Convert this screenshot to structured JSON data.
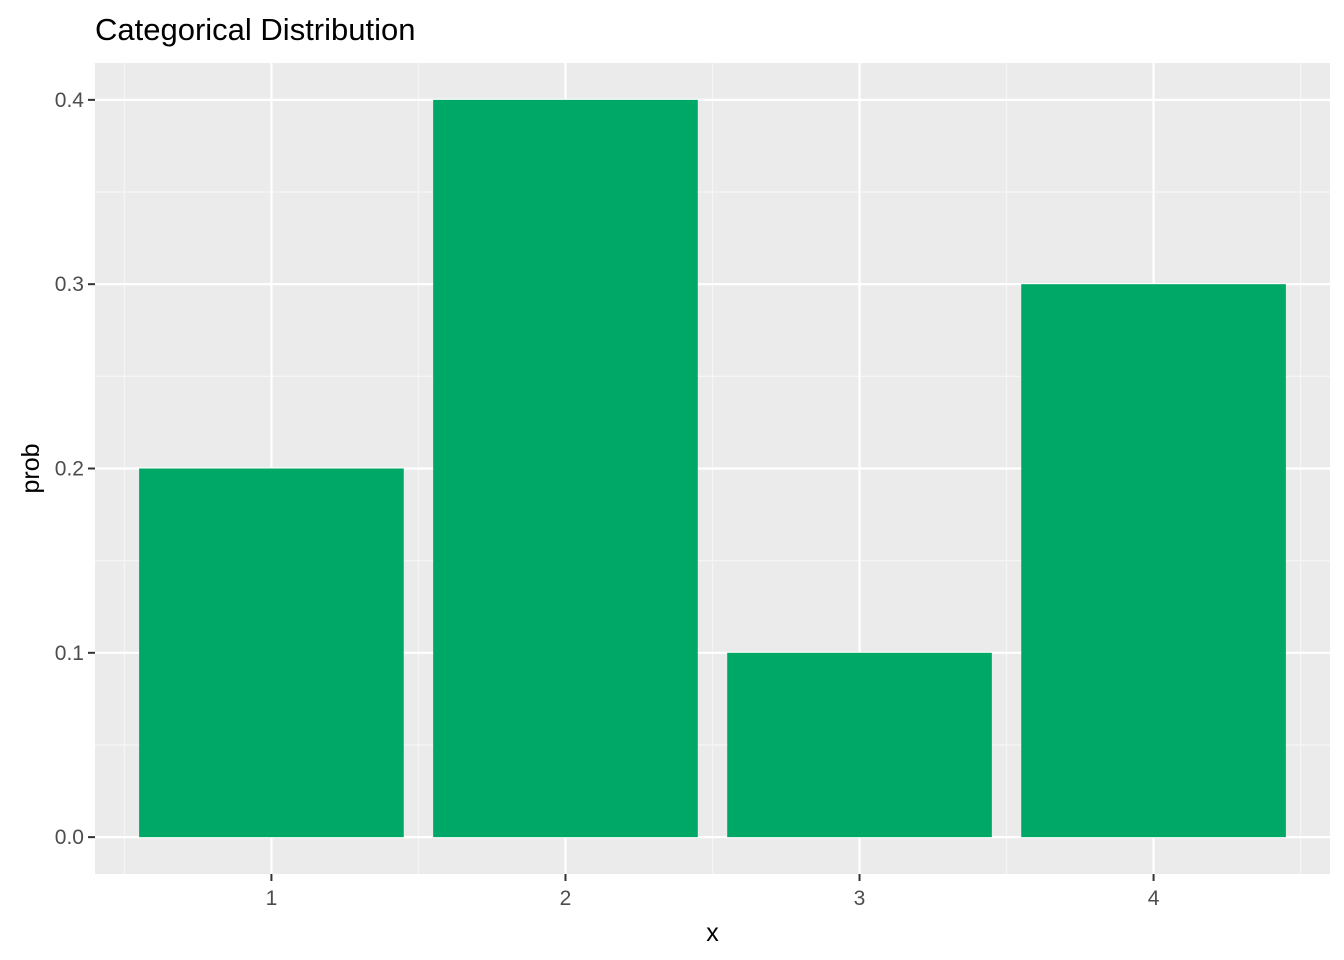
{
  "chart_data": {
    "type": "bar",
    "title": "Categorical Distribution",
    "xlabel": "x",
    "ylabel": "prob",
    "categories": [
      "1",
      "2",
      "3",
      "4"
    ],
    "values": [
      0.2,
      0.4,
      0.1,
      0.3
    ],
    "ylim": [
      -0.02,
      0.42
    ],
    "yticks": [
      0.0,
      0.1,
      0.2,
      0.3,
      0.4
    ],
    "ytick_labels": [
      "0.0",
      "0.1",
      "0.2",
      "0.3",
      "0.4"
    ],
    "grid": true,
    "legend": "none",
    "colors": {
      "bar": "#00A868",
      "panel_background": "#EBEBEB",
      "grid_major": "#FFFFFF",
      "grid_minor": "#F5F5F5"
    }
  }
}
